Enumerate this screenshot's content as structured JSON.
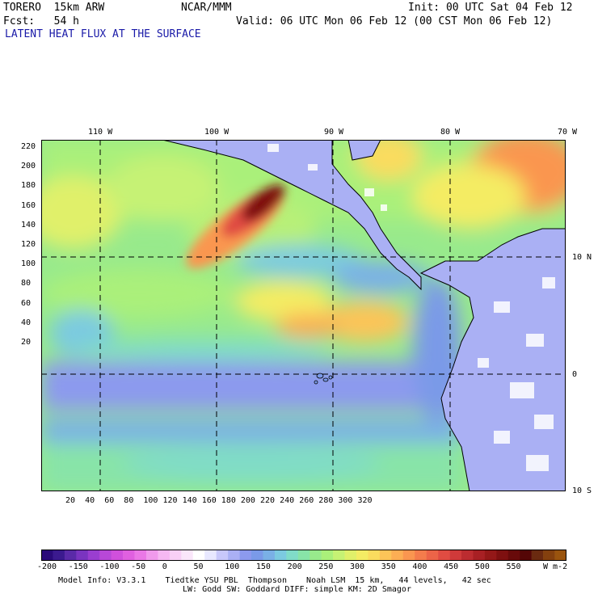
{
  "header": {
    "model": "TORERO  15km ARW",
    "org": "NCAR/MMM",
    "init": "Init: 00 UTC Sat 04 Feb 12",
    "fcst": "Fcst:   54 h",
    "valid": "Valid: 06 UTC Mon 06 Feb 12 (00 CST Mon 06 Feb 12)",
    "field": "LATENT HEAT FLUX AT THE SURFACE"
  },
  "map": {
    "top_lon_labels": [
      "110 W",
      "100 W",
      "90 W",
      "80 W",
      "70 W"
    ],
    "right_lat_labels": [
      "10 N",
      "0",
      "10 S"
    ],
    "left_y_ticks": [
      "220",
      "200",
      "180",
      "160",
      "140",
      "120",
      "100",
      "80",
      "60",
      "40",
      "20"
    ],
    "bottom_x_ticks": [
      "20",
      "40",
      "60",
      "80",
      "100",
      "120",
      "140",
      "160",
      "180",
      "200",
      "220",
      "240",
      "260",
      "280",
      "300",
      "320"
    ]
  },
  "colorbar": {
    "labels": [
      "-200",
      "-150",
      "-100",
      "-50",
      "0",
      "50",
      "100",
      "150",
      "200",
      "250",
      "300",
      "350",
      "400",
      "450",
      "500",
      "550"
    ],
    "units": "W m-2",
    "colors": [
      "#2a0a7a",
      "#3b1a8f",
      "#5a2aa8",
      "#7a34c0",
      "#9a3ed0",
      "#b848d8",
      "#d050dc",
      "#e060e0",
      "#ea78e6",
      "#f09aec",
      "#f6b8f2",
      "#f8d0f6",
      "#fae6fa",
      "#ffffff",
      "#e8e8ff",
      "#c8c8fa",
      "#aab0f4",
      "#8c9aee",
      "#7a9ae8",
      "#7ab0e6",
      "#7ccae0",
      "#80dcc8",
      "#88e4a8",
      "#98ea8c",
      "#aaf07a",
      "#c6f274",
      "#e0f06a",
      "#f4ec64",
      "#fadc5e",
      "#fcc458",
      "#fcae54",
      "#fa9650",
      "#f47c4c",
      "#ec6448",
      "#e04c42",
      "#d03a3a",
      "#bc2c30",
      "#a82024",
      "#941818",
      "#7e1010",
      "#680a0a",
      "#540606",
      "#6a2a10",
      "#84400e",
      "#9a540e"
    ]
  },
  "footer": {
    "line1": "Model Info: V3.3.1    Tiedtke YSU PBL  Thompson    Noah LSM  15 km,   44 levels,   42 sec",
    "line2": "LW: Godd SW: Goddard DIFF: simple KM: 2D Smagor"
  }
}
